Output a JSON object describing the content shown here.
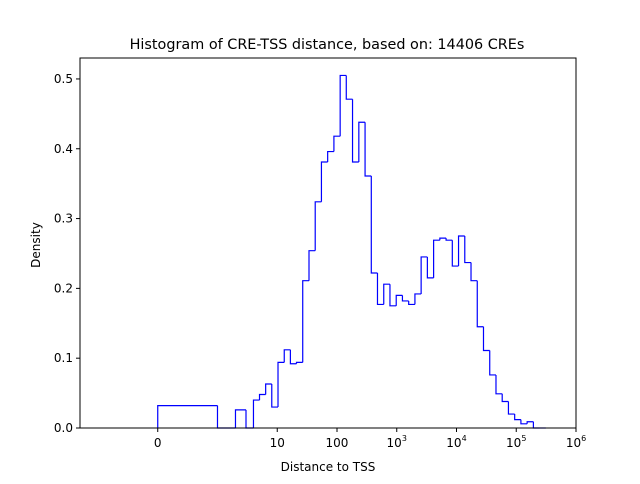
{
  "chart_data": {
    "type": "histogram",
    "title": "Histogram of CRE-TSS distance, based on: 14406 CREs",
    "xlabel": "Distance to TSS",
    "ylabel": "Density",
    "x_scale": "symlog",
    "xlim": [
      -2,
      1000000
    ],
    "ylim": [
      0,
      0.53
    ],
    "grid": false,
    "legend": "none",
    "line_color": "#0000ff",
    "x_ticks": [
      {
        "value": 0,
        "label": "0",
        "sup": ""
      },
      {
        "value": 10,
        "label": "10",
        "sup": ""
      },
      {
        "value": 100,
        "label": "100",
        "sup": ""
      },
      {
        "value": 1000,
        "label": "10",
        "sup": "3"
      },
      {
        "value": 10000,
        "label": "10",
        "sup": "4"
      },
      {
        "value": 100000,
        "label": "10",
        "sup": "5"
      },
      {
        "value": 1000000,
        "label": "10",
        "sup": "6"
      }
    ],
    "y_ticks": [
      {
        "value": 0.0,
        "label": "0.0"
      },
      {
        "value": 0.1,
        "label": "0.1"
      },
      {
        "value": 0.2,
        "label": "0.2"
      },
      {
        "value": 0.3,
        "label": "0.3"
      },
      {
        "value": 0.4,
        "label": "0.4"
      },
      {
        "value": 0.5,
        "label": "0.5"
      }
    ],
    "bin_edges": [
      0,
      1,
      2,
      3,
      4,
      5.05,
      6.4,
      8.1,
      10.3,
      13.1,
      16.6,
      21,
      26.7,
      34,
      43.2,
      54.9,
      69.8,
      88.8,
      113,
      143,
      182,
      232,
      295,
      375,
      476,
      606,
      770,
      980,
      1245,
      1585,
      2015,
      2560,
      3255,
      4140,
      5265,
      6695,
      8510,
      10820,
      13760,
      17500,
      22260,
      28300,
      36000,
      45800,
      58200,
      74000,
      94100,
      119700,
      152200,
      193600,
      246100,
      313000
    ],
    "densities": [
      0.032,
      0,
      0.026,
      0,
      0.04,
      0.048,
      0.063,
      0.03,
      0.094,
      0.112,
      0.092,
      0.094,
      0.211,
      0.254,
      0.324,
      0.381,
      0.396,
      0.418,
      0.505,
      0.471,
      0.381,
      0.438,
      0.361,
      0.222,
      0.177,
      0.206,
      0.175,
      0.19,
      0.182,
      0.177,
      0.192,
      0.245,
      0.215,
      0.269,
      0.272,
      0.269,
      0.232,
      0.275,
      0.237,
      0.211,
      0.145,
      0.111,
      0.076,
      0.049,
      0.038,
      0.02,
      0.012,
      0.006,
      0.009,
      0.0,
      0.0
    ]
  }
}
